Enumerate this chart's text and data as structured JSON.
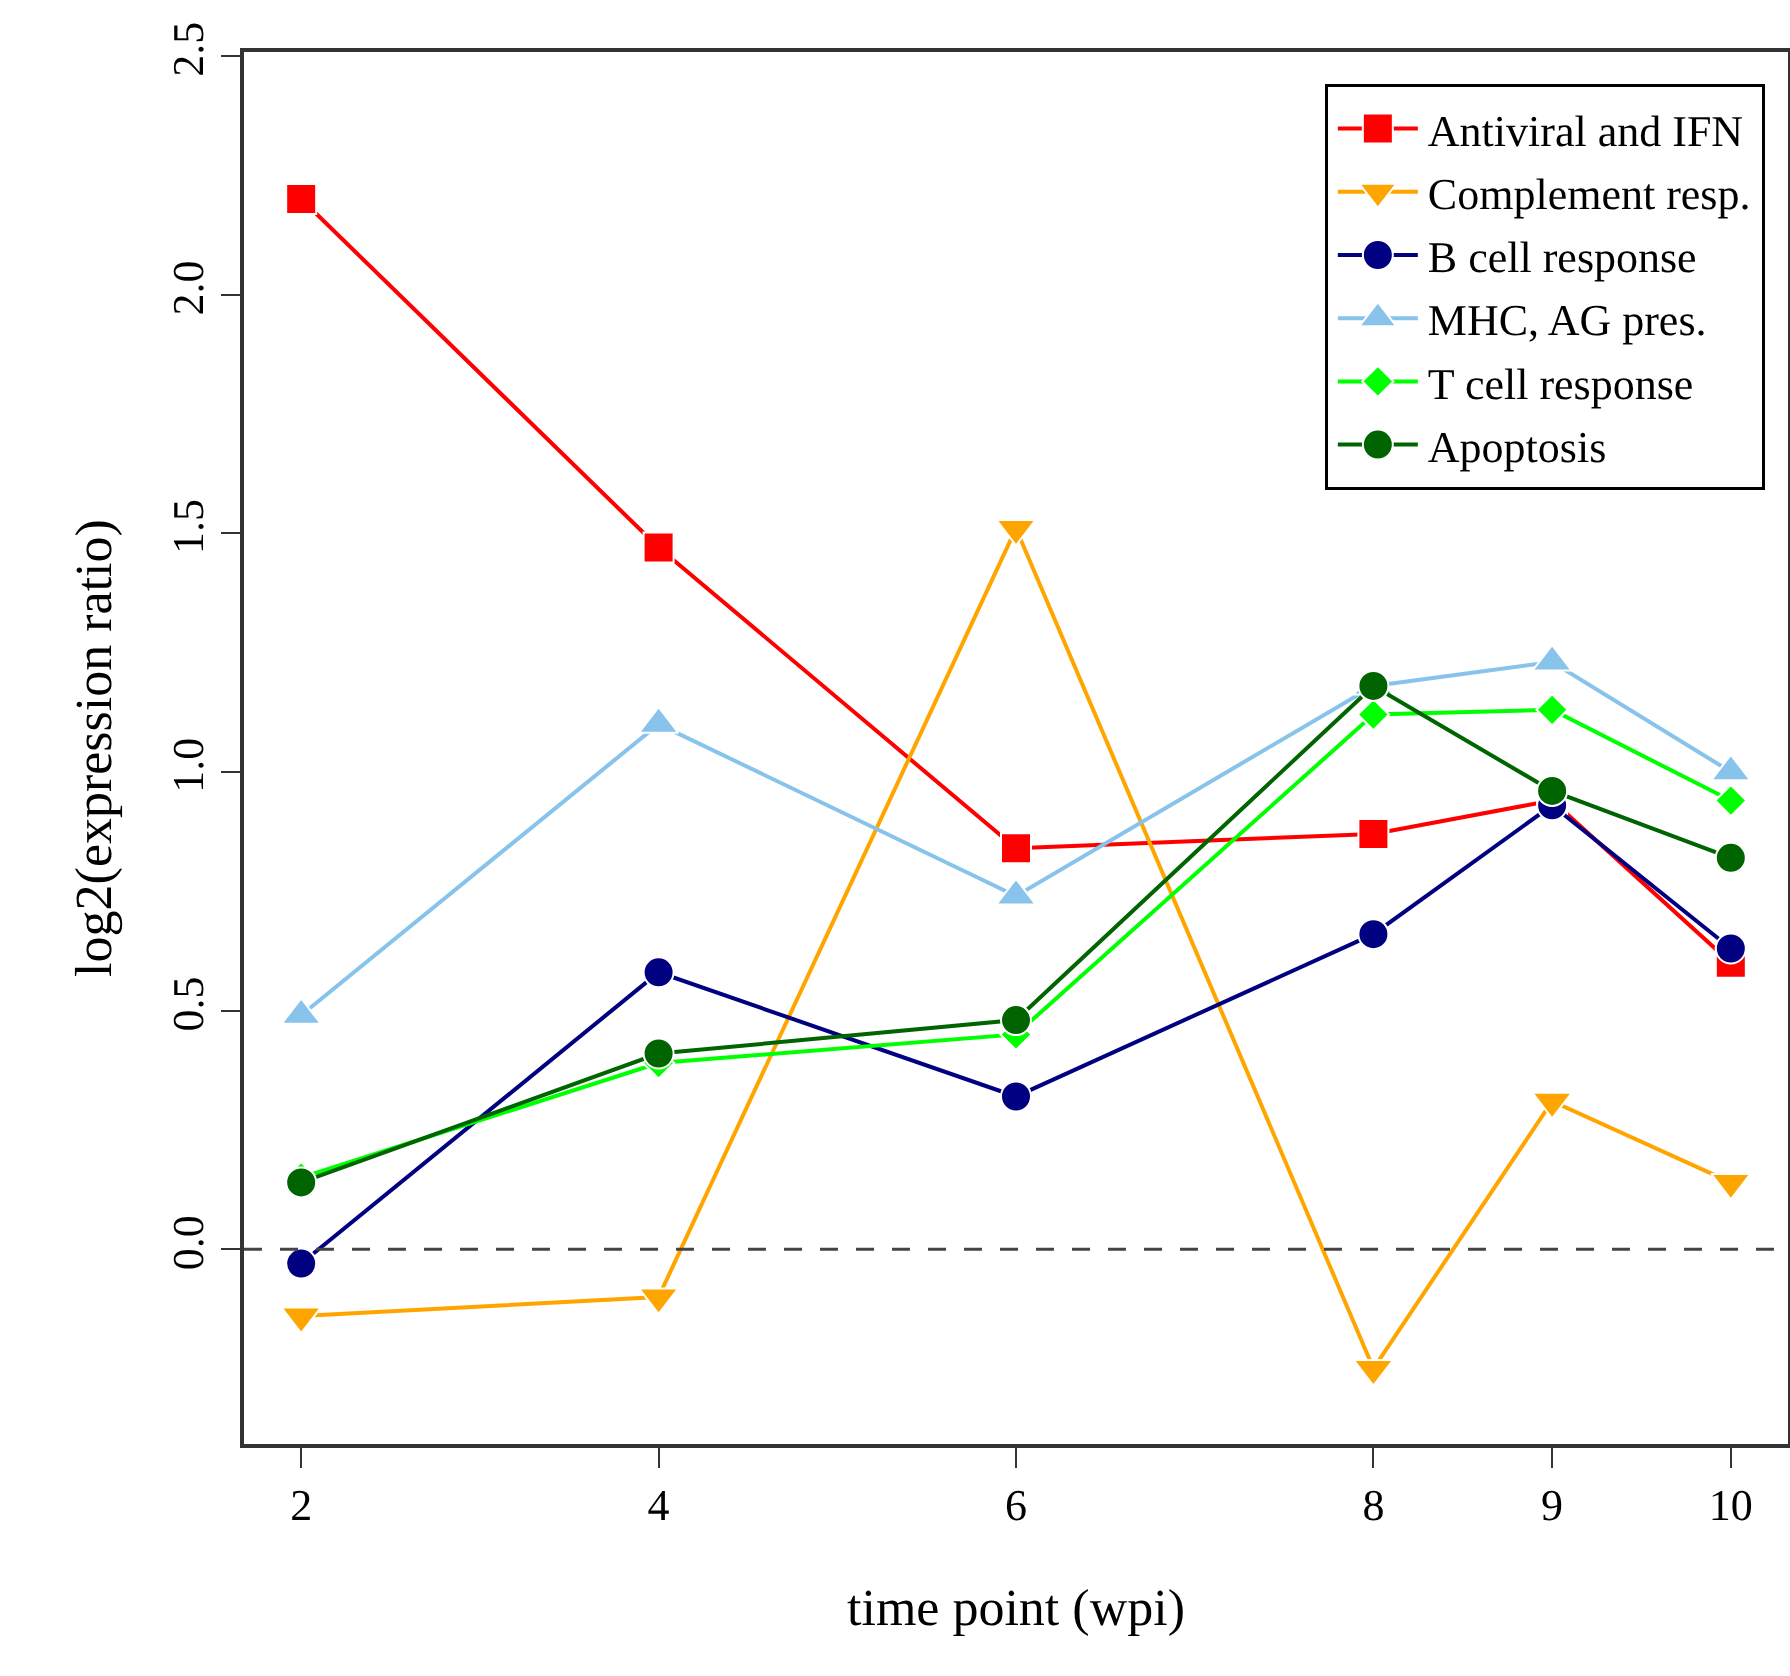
{
  "chart_data": {
    "type": "line",
    "xlabel": "time point (wpi)",
    "ylabel": "log2(expression ratio)",
    "x": [
      2,
      4,
      6,
      8,
      9,
      10
    ],
    "series": [
      {
        "name": "Antiviral and IFN",
        "color": "#ff0000",
        "marker": "square",
        "values": [
          2.2,
          1.47,
          0.84,
          0.87,
          0.94,
          0.6
        ]
      },
      {
        "name": "Complement resp.",
        "color": "#ffa500",
        "marker": "triangle-down",
        "values": [
          -0.14,
          -0.1,
          1.51,
          -0.25,
          0.31,
          0.14
        ]
      },
      {
        "name": "B cell response",
        "color": "#000080",
        "marker": "circle",
        "values": [
          -0.03,
          0.58,
          0.32,
          0.66,
          0.93,
          0.63
        ]
      },
      {
        "name": "MHC, AG pres.",
        "color": "#87c3eb",
        "marker": "triangle",
        "values": [
          0.49,
          1.1,
          0.74,
          1.18,
          1.23,
          1.0
        ]
      },
      {
        "name": "T cell response",
        "color": "#00ff00",
        "marker": "diamond",
        "values": [
          0.15,
          0.39,
          0.45,
          1.12,
          1.13,
          0.94
        ]
      },
      {
        "name": "Apoptosis",
        "color": "#006400",
        "marker": "circle",
        "values": [
          0.14,
          0.41,
          0.48,
          1.18,
          0.96,
          0.82
        ]
      }
    ],
    "xlim": [
      1.68,
      10.32
    ],
    "xticks": [
      2,
      4,
      6,
      8,
      9,
      10
    ],
    "ylim": [
      -0.408,
      2.508
    ],
    "yticks": [
      {
        "value": 0,
        "label": "0.0"
      },
      0.5,
      {
        "value": 1,
        "label": "1.0"
      },
      1.5,
      {
        "value": 2,
        "label": "2.0"
      },
      2.5
    ],
    "ref_lines": [
      {
        "axis": "y",
        "value": 0,
        "color": "#444444",
        "line_style": "dashed"
      }
    ],
    "grid": false,
    "legend": "top right",
    "line_style": "solid"
  }
}
